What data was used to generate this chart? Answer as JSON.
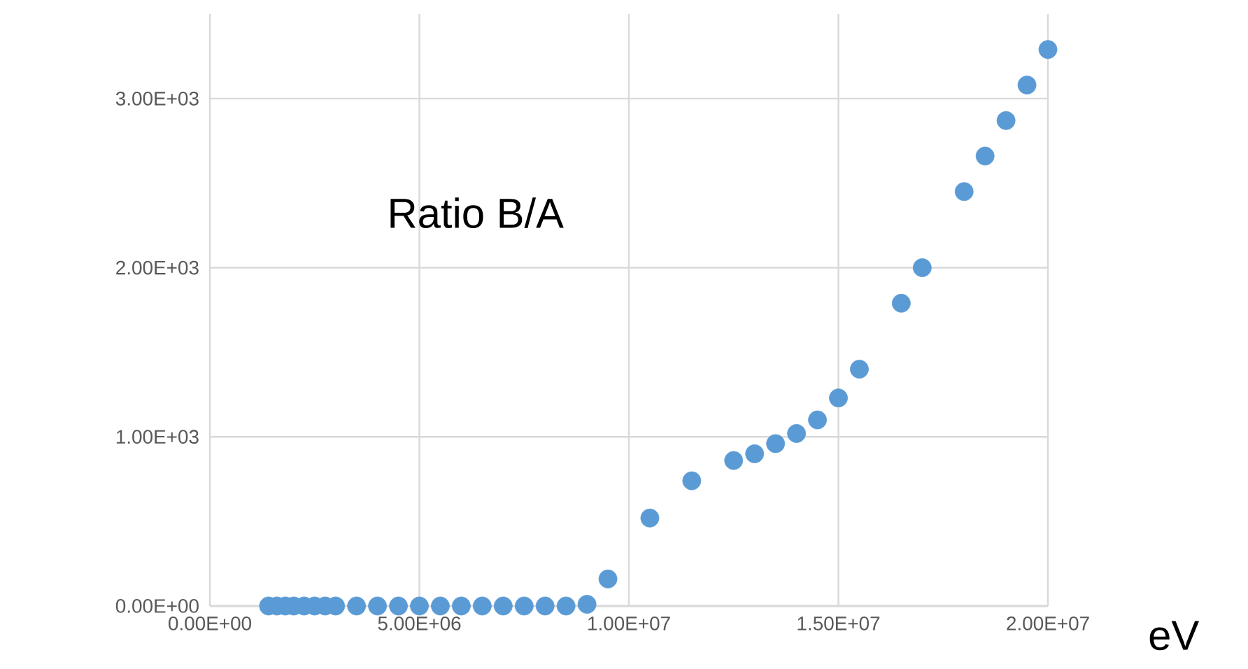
{
  "chart_data": {
    "type": "scatter",
    "title": "Ratio B/A",
    "xlabel": "eV",
    "x": [
      1400000,
      1600000,
      1800000,
      2000000,
      2250000,
      2500000,
      2750000,
      3000000,
      3500000,
      4000000,
      4500000,
      5000000,
      5500000,
      6000000,
      6500000,
      7000000,
      7500000,
      8000000,
      8500000,
      9000000,
      9500000,
      10500000,
      11500000,
      12500000,
      13000000,
      13500000,
      14000000,
      14500000,
      15000000,
      15500000,
      16500000,
      17000000,
      18000000,
      18500000,
      19000000,
      19500000,
      20000000
    ],
    "series": [
      {
        "color": "#5b9bd5",
        "values": [
          0,
          0,
          0,
          0,
          0,
          0,
          0,
          0,
          0,
          0,
          0,
          0,
          0,
          0,
          0,
          0,
          0,
          0,
          0,
          10,
          160,
          520,
          740,
          860,
          900,
          960,
          1020,
          1100,
          1230,
          1400,
          1790,
          2000,
          2450,
          2660,
          2870,
          3080,
          3290
        ]
      }
    ],
    "xlim": [
      0,
      20000000
    ],
    "ylim": [
      0,
      3500
    ],
    "xticks": [
      {
        "value": 0,
        "label": "0.00E+00"
      },
      {
        "value": 5000000,
        "label": "5.00E+06"
      },
      {
        "value": 10000000,
        "label": "1.00E+07"
      },
      {
        "value": 15000000,
        "label": "1.50E+07"
      },
      {
        "value": 20000000,
        "label": "2.00E+07"
      }
    ],
    "yticks": [
      {
        "value": 0,
        "label": "0.00E+00"
      },
      {
        "value": 1000,
        "label": "1.00E+03"
      },
      {
        "value": 2000,
        "label": "2.00E+03"
      },
      {
        "value": 3000,
        "label": "3.00E+03"
      }
    ],
    "grid": true
  }
}
